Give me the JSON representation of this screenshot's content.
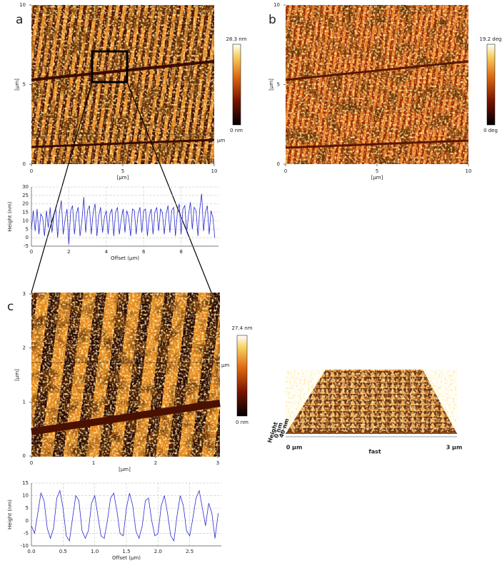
{
  "images": {
    "a": {
      "label": "a",
      "xlim": [
        0,
        10
      ],
      "ylim": [
        0,
        10
      ],
      "xticks": [
        0,
        5,
        10
      ],
      "yticks": [
        0,
        5,
        10
      ],
      "xlabel": "[µm]",
      "ylabel": "[µm]",
      "colorbar_max": "28.3 nm",
      "colorbar_min": "0 nm",
      "marker": "µm"
    },
    "b": {
      "label": "b",
      "xlim": [
        0,
        10
      ],
      "ylim": [
        0,
        10
      ],
      "xticks": [
        0,
        5,
        10
      ],
      "yticks": [
        0,
        5,
        10
      ],
      "xlabel": "[µm]",
      "ylabel": "[µm]",
      "colorbar_max": "19.2 deg",
      "colorbar_min": "0 deg"
    },
    "c": {
      "label": "c",
      "xlim": [
        0,
        3
      ],
      "ylim": [
        0,
        3
      ],
      "xticks": [
        0,
        1,
        2,
        3
      ],
      "yticks": [
        0,
        1,
        2,
        3
      ],
      "xlabel": "[µm]",
      "ylabel": "[µm]",
      "colorbar_max": "27.4 nm",
      "colorbar_min": "0 nm",
      "marker": "µm"
    }
  },
  "view3d": {
    "x_start": "0 µm",
    "x_label": "fast",
    "x_end": "3 µm",
    "z_top": "40 nm",
    "z_bottom": "0 nm",
    "z_label": "Height"
  },
  "chart_data": [
    {
      "type": "line",
      "xlabel": "Offset (µm)",
      "ylabel": "Height (nm)",
      "color": "#2a2ad0",
      "grid": true,
      "xlim": [
        0,
        10
      ],
      "ylim": [
        -5,
        30
      ],
      "xticks": [
        0,
        2,
        4,
        6,
        8
      ],
      "yticks": [
        -5,
        0,
        5,
        10,
        15,
        20,
        25,
        30
      ],
      "x": [
        0,
        0.1,
        0.2,
        0.3,
        0.4,
        0.5,
        0.6,
        0.7,
        0.8,
        0.9,
        1,
        1.1,
        1.2,
        1.3,
        1.4,
        1.5,
        1.6,
        1.7,
        1.8,
        1.9,
        2,
        2.1,
        2.2,
        2.3,
        2.4,
        2.5,
        2.6,
        2.7,
        2.8,
        2.9,
        3,
        3.1,
        3.2,
        3.3,
        3.4,
        3.5,
        3.6,
        3.7,
        3.8,
        3.9,
        4,
        4.1,
        4.2,
        4.3,
        4.4,
        4.5,
        4.6,
        4.7,
        4.8,
        4.9,
        5,
        5.1,
        5.2,
        5.3,
        5.4,
        5.5,
        5.6,
        5.7,
        5.8,
        5.9,
        6,
        6.1,
        6.2,
        6.3,
        6.4,
        6.5,
        6.6,
        6.7,
        6.8,
        6.9,
        7,
        7.1,
        7.2,
        7.3,
        7.4,
        7.5,
        7.6,
        7.7,
        7.8,
        7.9,
        8,
        8.1,
        8.2,
        8.3,
        8.4,
        8.5,
        8.6,
        8.7,
        8.8,
        8.9,
        9,
        9.1,
        9.2,
        9.3,
        9.4,
        9.5,
        9.6,
        9.7,
        9.8
      ],
      "values": [
        5,
        16,
        4,
        17,
        2,
        14,
        12,
        1,
        16,
        6,
        18,
        3,
        13,
        17,
        0,
        15,
        22,
        2,
        11,
        17,
        -4,
        16,
        19,
        2,
        14,
        18,
        1,
        10,
        24,
        3,
        16,
        19,
        2,
        15,
        20,
        1,
        13,
        18,
        3,
        12,
        16,
        2,
        14,
        17,
        1,
        15,
        18,
        2,
        11,
        17,
        3,
        16,
        12,
        1,
        17,
        16,
        2,
        14,
        18,
        3,
        16,
        17,
        1,
        13,
        17,
        2,
        15,
        18,
        4,
        17,
        15,
        2,
        14,
        19,
        3,
        16,
        18,
        1,
        15,
        20,
        2,
        17,
        19,
        3,
        14,
        21,
        5,
        18,
        16,
        1,
        17,
        26,
        4,
        15,
        19,
        2,
        16,
        12,
        0
      ]
    },
    {
      "type": "line",
      "xlabel": "Offset (µm)",
      "ylabel": "Height (nm)",
      "color": "#2a2ad0",
      "grid": true,
      "xlim": [
        0,
        3
      ],
      "ylim": [
        -10,
        15
      ],
      "xticks": [
        {
          "value": 0,
          "label": "0.0"
        },
        0.5,
        {
          "value": 1,
          "label": "1.0"
        },
        1.5,
        {
          "value": 2,
          "label": "2.0"
        },
        2.5
      ],
      "yticks": [
        -10,
        -5,
        0,
        5,
        10,
        15
      ],
      "x": [
        0,
        0.05,
        0.1,
        0.15,
        0.2,
        0.25,
        0.3,
        0.35,
        0.4,
        0.45,
        0.5,
        0.55,
        0.6,
        0.65,
        0.7,
        0.75,
        0.8,
        0.85,
        0.9,
        0.95,
        1,
        1.05,
        1.1,
        1.15,
        1.2,
        1.25,
        1.3,
        1.35,
        1.4,
        1.45,
        1.5,
        1.55,
        1.6,
        1.65,
        1.7,
        1.75,
        1.8,
        1.85,
        1.9,
        1.95,
        2,
        2.05,
        2.1,
        2.15,
        2.2,
        2.25,
        2.3,
        2.35,
        2.4,
        2.45,
        2.5,
        2.55,
        2.6,
        2.65,
        2.7,
        2.75,
        2.8,
        2.85,
        2.9,
        2.95
      ],
      "values": [
        -2,
        -5,
        3,
        11,
        8,
        -3,
        -7,
        -3,
        9,
        12,
        5,
        -6,
        -8,
        1,
        10,
        8,
        -4,
        -7,
        -4,
        7,
        10,
        2,
        -6,
        -7,
        0,
        9,
        11,
        4,
        -5,
        -6,
        5,
        11,
        6,
        -4,
        -7,
        -2,
        8,
        9,
        0,
        -6,
        -5,
        6,
        10,
        3,
        -6,
        -8,
        2,
        10,
        6,
        -4,
        -6,
        1,
        9,
        12,
        5,
        -2,
        7,
        3,
        -7,
        3
      ]
    }
  ]
}
